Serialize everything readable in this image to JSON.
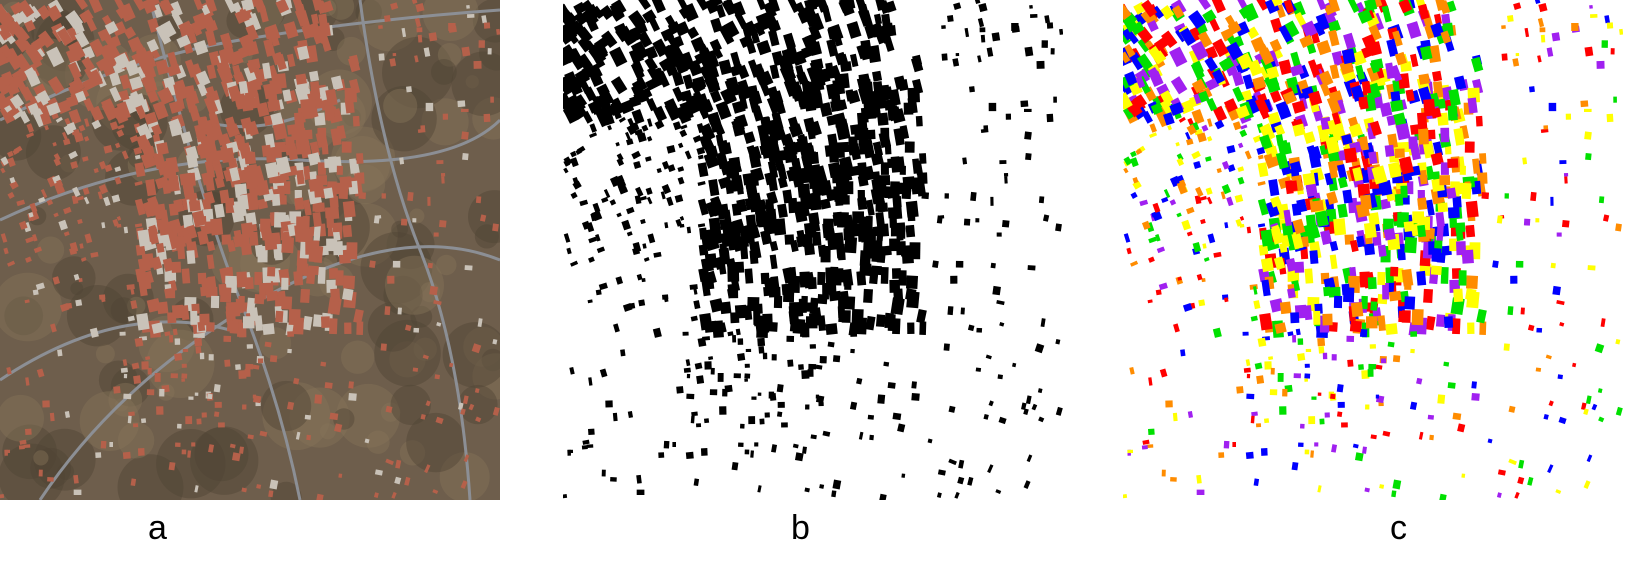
{
  "figure": {
    "panels": [
      {
        "label": "a",
        "content": "aerial-satellite-photo"
      },
      {
        "label": "b",
        "content": "binary-building-mask"
      },
      {
        "label": "c",
        "content": "colored-building-instances"
      }
    ]
  },
  "colors": {
    "aerial_ground": "#6e5e4c",
    "aerial_roof": "#b5604a",
    "aerial_road": "#8c8f95",
    "mask_building": "#000000",
    "mask_background": "#ffffff",
    "instance_palette": [
      "#ff0000",
      "#00e000",
      "#0000ff",
      "#ffff00",
      "#ff8c00",
      "#a020f0"
    ]
  }
}
